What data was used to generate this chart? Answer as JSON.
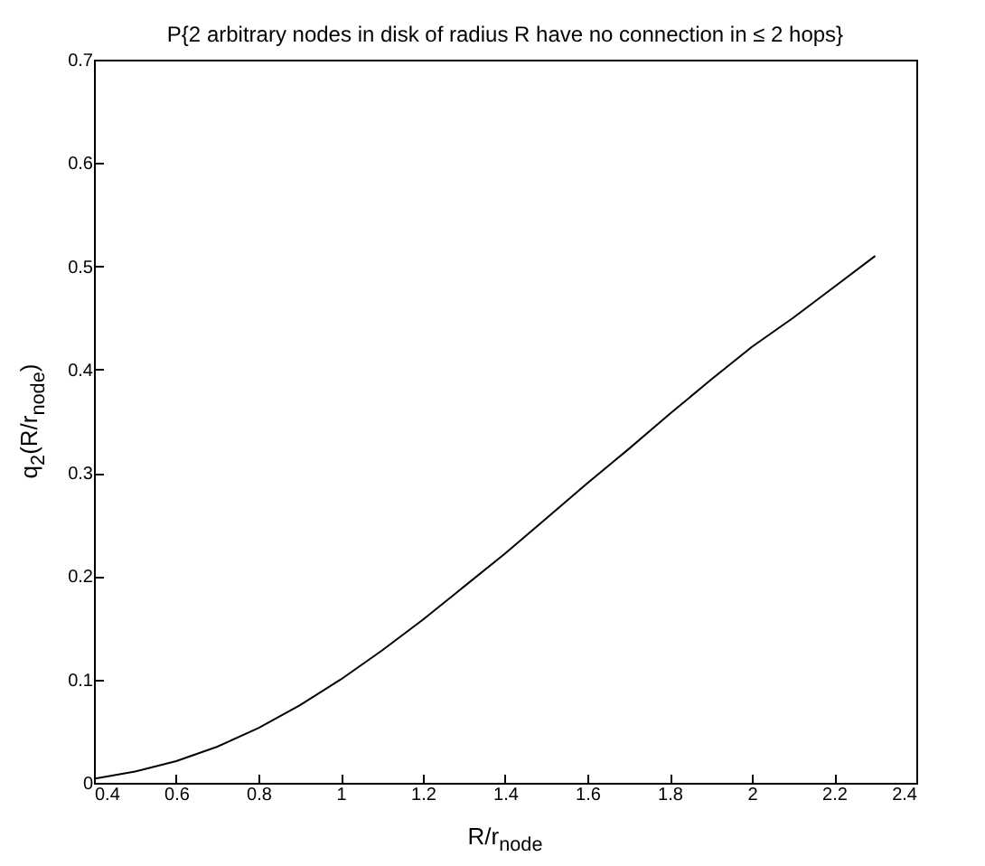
{
  "chart_data": {
    "type": "line",
    "title": "P{2 arbitrary nodes in disk of radius R have no connection in ≤ 2 hops}",
    "xlabel": "R/r$_{node}$",
    "ylabel": "q$_{2}$(R/r$_{node}$)",
    "x": [
      0.4,
      0.5,
      0.6,
      0.7,
      0.8,
      0.9,
      1.0,
      1.1,
      1.2,
      1.3,
      1.4,
      1.5,
      1.6,
      1.7,
      1.8,
      1.9,
      2.0,
      2.1,
      2.2,
      2.3
    ],
    "series": [
      {
        "color": "#000000",
        "values": [
          0.004,
          0.011,
          0.021,
          0.035,
          0.053,
          0.075,
          0.1,
          0.128,
          0.158,
          0.19,
          0.222,
          0.256,
          0.29,
          0.323,
          0.357,
          0.39,
          0.422,
          0.45,
          0.48,
          0.51
        ]
      }
    ],
    "xlim": [
      0.4,
      2.4
    ],
    "xticks": [
      0.4,
      0.6,
      0.8,
      1,
      1.2,
      1.4,
      1.6,
      1.8,
      2,
      2.2,
      2.4
    ],
    "ylim": [
      0,
      0.7
    ],
    "yticks": [
      0,
      0.1,
      0.2,
      0.3,
      0.4,
      0.5,
      0.6,
      0.7
    ],
    "grid": false,
    "marker": "none",
    "line_style": "solid"
  }
}
